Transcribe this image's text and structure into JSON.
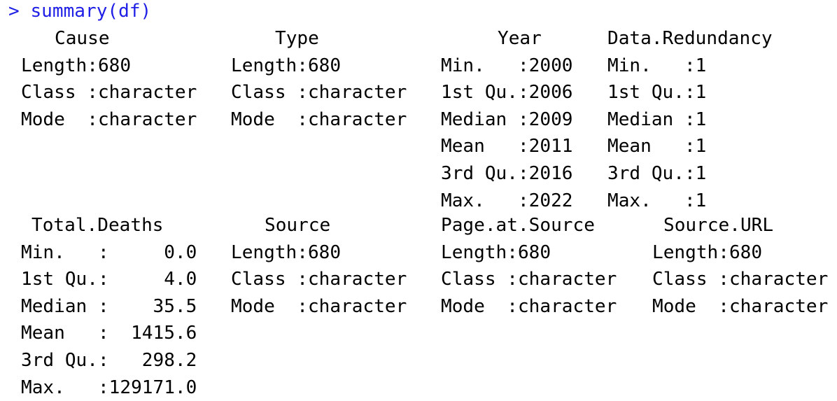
{
  "console": {
    "prompt": ">",
    "command": "summary(df)",
    "text_color": "#000000",
    "command_color": "#1f1fe6"
  },
  "blocks": [
    {
      "columns": [
        {
          "header": "Cause",
          "rows": [
            "Length:680",
            "Class :character",
            "Mode  :character"
          ]
        },
        {
          "header": "Type",
          "rows": [
            "Length:680",
            "Class :character",
            "Mode  :character"
          ]
        },
        {
          "header": "Year",
          "rows": [
            "Min.   :2000",
            "1st Qu.:2006",
            "Median :2009",
            "Mean   :2011",
            "3rd Qu.:2016",
            "Max.   :2022"
          ]
        },
        {
          "header": "Data.Redundancy",
          "rows": [
            "Min.   :1",
            "1st Qu.:1",
            "Median :1",
            "Mean   :1",
            "3rd Qu.:1",
            "Max.   :1"
          ]
        }
      ]
    },
    {
      "columns": [
        {
          "header": "Total.Deaths",
          "rows": [
            "Min.   :     0.0",
            "1st Qu.:     4.0",
            "Median :    35.5",
            "Mean   :  1415.6",
            "3rd Qu.:   298.2",
            "Max.   :129171.0"
          ]
        },
        {
          "header": "Source",
          "rows": [
            "Length:680",
            "Class :character",
            "Mode  :character"
          ]
        },
        {
          "header": "Page.at.Source",
          "rows": [
            "Length:680",
            "Class :character",
            "Mode  :character"
          ]
        },
        {
          "header": "Source.URL",
          "rows": [
            "Length:680",
            "Class :character",
            "Mode  :character"
          ]
        }
      ]
    }
  ]
}
